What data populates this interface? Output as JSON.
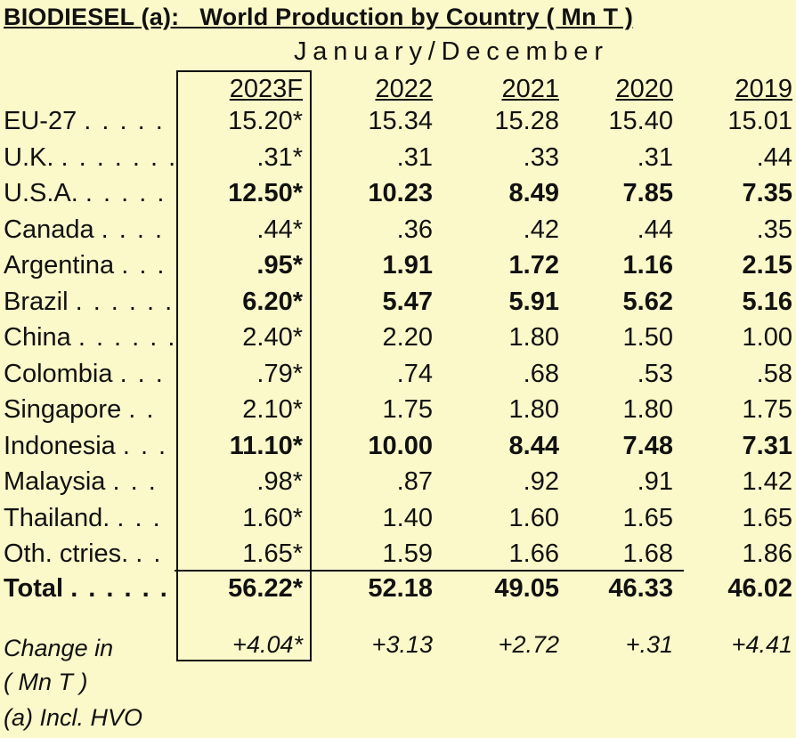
{
  "title": "BIODIESEL (a):   World Production by Country ( Mn T )",
  "period": "January/December",
  "columns": [
    "2023F",
    "2022",
    "2021",
    "2020",
    "2019"
  ],
  "rows": [
    {
      "label": "EU-27",
      "dots": ". . . . .",
      "values": [
        "15.20*",
        "15.34",
        "15.28",
        "15.40",
        "15.01"
      ],
      "bold": false
    },
    {
      "label": "U.K.",
      "dots": ". . . . . . .",
      "values": [
        ".31*",
        ".31",
        ".33",
        ".31",
        ".44"
      ],
      "bold": false
    },
    {
      "label": "U.S.A.",
      "dots": ". . . . .",
      "values": [
        "12.50*",
        "10.23",
        "8.49",
        "7.85",
        "7.35"
      ],
      "bold": true
    },
    {
      "label": "Canada",
      "dots": ". . . .",
      "values": [
        ".44*",
        ".36",
        ".42",
        ".44",
        ".35"
      ],
      "bold": false
    },
    {
      "label": "Argentina",
      "dots": ". . .",
      "values": [
        ".95*",
        "1.91",
        "1.72",
        "1.16",
        "2.15"
      ],
      "bold": true
    },
    {
      "label": "Brazil",
      "dots": ". . . . . .",
      "values": [
        "6.20*",
        "5.47",
        "5.91",
        "5.62",
        "5.16"
      ],
      "bold": true
    },
    {
      "label": "China",
      "dots": ". . . . . .",
      "values": [
        "2.40*",
        "2.20",
        "1.80",
        "1.50",
        "1.00"
      ],
      "bold": false
    },
    {
      "label": "Colombia",
      "dots": ". . .",
      "values": [
        ".79*",
        ".74",
        ".68",
        ".53",
        ".58"
      ],
      "bold": false
    },
    {
      "label": "Singapore",
      "dots": ". .",
      "values": [
        "2.10*",
        "1.75",
        "1.80",
        "1.80",
        "1.75"
      ],
      "bold": false
    },
    {
      "label": "Indonesia",
      "dots": ". . .",
      "values": [
        "11.10*",
        "10.00",
        "8.44",
        "7.48",
        "7.31"
      ],
      "bold": true
    },
    {
      "label": "Malaysia",
      "dots": ". . .",
      "values": [
        ".98*",
        ".87",
        ".92",
        ".91",
        "1.42"
      ],
      "bold": false
    },
    {
      "label": "Thailand.",
      "dots": ". . .",
      "values": [
        "1.60*",
        "1.40",
        "1.60",
        "1.65",
        "1.65"
      ],
      "bold": false
    },
    {
      "label": "Oth. ctries.",
      "dots": ". .",
      "values": [
        "1.65*",
        "1.59",
        "1.66",
        "1.68",
        "1.86"
      ],
      "bold": false
    }
  ],
  "total": {
    "label": "Total",
    "dots": ". . . . . .",
    "values": [
      "56.22*",
      "52.18",
      "49.05",
      "46.33",
      "46.02"
    ]
  },
  "change": {
    "label": "Change in\n( Mn T )",
    "values": [
      "+4.04*",
      "+3.13",
      "+2.72",
      "+.31",
      "+4.41"
    ]
  },
  "footnote": "(a) Incl. HVO"
}
